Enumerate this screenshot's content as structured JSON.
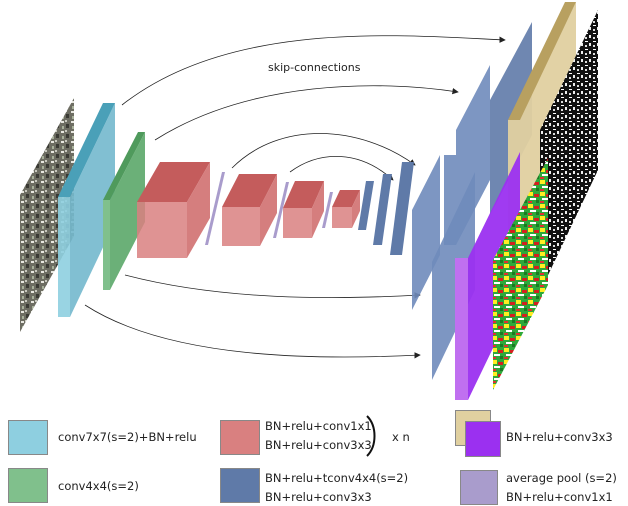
{
  "diagram": {
    "skip_label": "skip-connections"
  },
  "legend": {
    "conv7": {
      "label": "conv7x7(s=2)+BN+relu",
      "color": "#8ecfe0"
    },
    "conv4": {
      "label": "conv4x4(s=2)",
      "color": "#80c08c"
    },
    "resblock": {
      "line1": "BN+relu+conv1x1",
      "line2": "BN+relu+conv3x3",
      "repeat": "x n",
      "color": "#d98080"
    },
    "tconv": {
      "line1": "BN+relu+tconv4x4(s=2)",
      "line2": "BN+relu+conv3x3",
      "color": "#5f7aa8"
    },
    "head": {
      "label": "BN+relu+conv3x3",
      "color_a": "#e0d0a0",
      "color_b": "#9b30f0"
    },
    "pool": {
      "line1": "average pool (s=2)",
      "line2": "BN+relu+conv1x1",
      "color": "#a99ccc"
    }
  }
}
